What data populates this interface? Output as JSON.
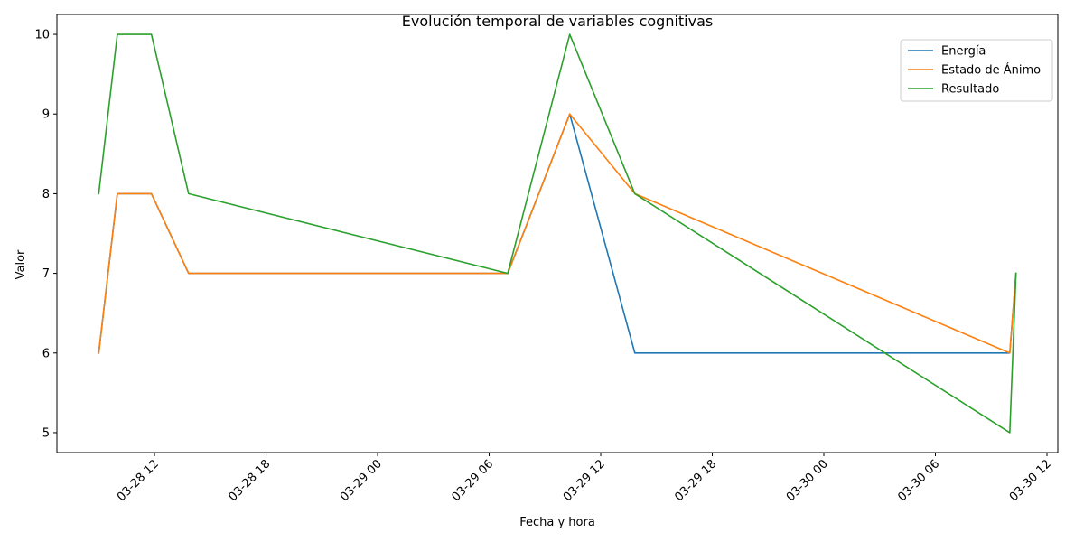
{
  "chart_data": {
    "type": "line",
    "title": "Evolución temporal de variables cognitivas",
    "xlabel": "Fecha y hora",
    "ylabel": "Valor",
    "x": [
      "2024-03-28 09:00",
      "2024-03-28 10:00",
      "2024-03-28 11:50",
      "2024-03-28 13:50",
      "2024-03-29 07:00",
      "2024-03-29 10:20",
      "2024-03-29 13:50",
      "2024-03-30 10:00",
      "2024-03-30 10:20"
    ],
    "series": [
      {
        "name": "Energía",
        "color": "#1f77b4",
        "values": [
          6,
          8,
          8,
          7,
          7,
          9,
          6,
          6,
          7
        ]
      },
      {
        "name": "Estado de Ánimo",
        "color": "#ff7f0e",
        "values": [
          6,
          8,
          8,
          7,
          7,
          9,
          8,
          6,
          7
        ]
      },
      {
        "name": "Resultado",
        "color": "#2ca02c",
        "values": [
          8,
          10,
          10,
          8,
          7,
          10,
          8,
          5,
          7
        ]
      }
    ],
    "xlim": [
      "2024-03-28 06:45",
      "2024-03-30 12:35"
    ],
    "ylim": [
      4.75,
      10.25
    ],
    "x_ticks": [
      {
        "value": "2024-03-28 12:00",
        "label": "03-28 12"
      },
      {
        "value": "2024-03-28 18:00",
        "label": "03-28 18"
      },
      {
        "value": "2024-03-29 00:00",
        "label": "03-29 00"
      },
      {
        "value": "2024-03-29 06:00",
        "label": "03-29 06"
      },
      {
        "value": "2024-03-29 12:00",
        "label": "03-29 12"
      },
      {
        "value": "2024-03-29 18:00",
        "label": "03-29 18"
      },
      {
        "value": "2024-03-30 00:00",
        "label": "03-30 00"
      },
      {
        "value": "2024-03-30 06:00",
        "label": "03-30 06"
      },
      {
        "value": "2024-03-30 12:00",
        "label": "03-30 12"
      }
    ],
    "y_ticks": [
      5,
      6,
      7,
      8,
      9,
      10
    ],
    "grid": false,
    "legend_position": "top-right"
  }
}
